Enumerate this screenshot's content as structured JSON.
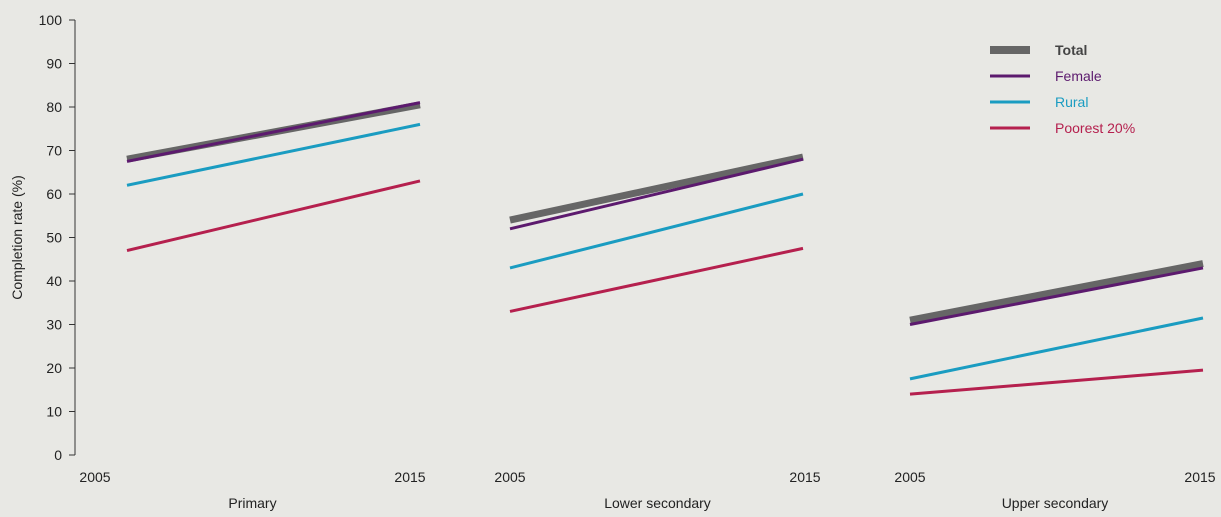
{
  "chart_data": {
    "type": "line",
    "ylabel": "Completion rate (%)",
    "ylim": [
      0,
      100
    ],
    "yticks": [
      0,
      10,
      20,
      30,
      40,
      50,
      60,
      70,
      80,
      90,
      100
    ],
    "legend_position": "top-right",
    "series_styles": [
      {
        "name": "Total",
        "color": "#666666",
        "bold": true
      },
      {
        "name": "Female",
        "color": "#5c1a6e"
      },
      {
        "name": "Rural",
        "color": "#1a9cc1"
      },
      {
        "name": "Poorest 20%",
        "color": "#b5204e"
      }
    ],
    "panels": [
      {
        "title": "Primary",
        "x_start_label": "2005",
        "x_end_label": "2015",
        "series": [
          {
            "name": "Total",
            "values": [
              68,
              80.5
            ]
          },
          {
            "name": "Female",
            "values": [
              67.5,
              81
            ]
          },
          {
            "name": "Rural",
            "values": [
              62,
              76
            ]
          },
          {
            "name": "Poorest 20%",
            "values": [
              47,
              63
            ]
          }
        ]
      },
      {
        "title": "Lower secondary",
        "x_start_label": "2005",
        "x_end_label": "2015",
        "series": [
          {
            "name": "Total",
            "values": [
              54,
              68.5
            ]
          },
          {
            "name": "Female",
            "values": [
              52,
              68
            ]
          },
          {
            "name": "Rural",
            "values": [
              43,
              60
            ]
          },
          {
            "name": "Poorest 20%",
            "values": [
              33,
              47.5
            ]
          }
        ]
      },
      {
        "title": "Upper secondary",
        "x_start_label": "2005",
        "x_end_label": "2015",
        "series": [
          {
            "name": "Total",
            "values": [
              31,
              44
            ]
          },
          {
            "name": "Female",
            "values": [
              30,
              43
            ]
          },
          {
            "name": "Rural",
            "values": [
              17.5,
              31.5
            ]
          },
          {
            "name": "Poorest 20%",
            "values": [
              14,
              19.5
            ]
          }
        ]
      }
    ]
  }
}
